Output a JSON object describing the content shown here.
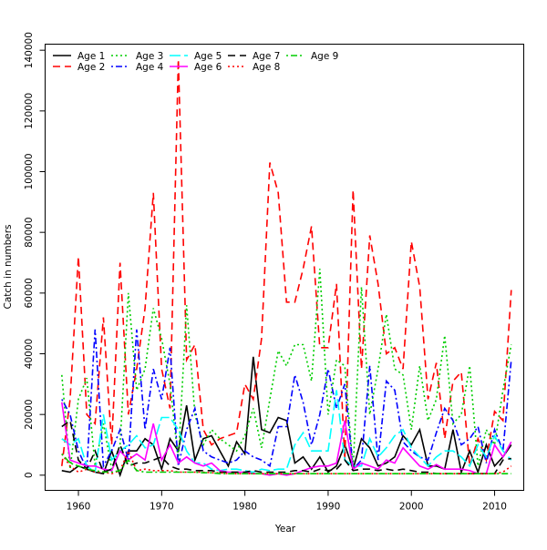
{
  "chart_data": {
    "type": "line",
    "title": "",
    "xlabel": "Year",
    "ylabel": "Catch in numbers",
    "xlim": [
      1956,
      2013.5
    ],
    "ylim": [
      -5000,
      142000
    ],
    "x_ticks": [
      1960,
      1970,
      1980,
      1990,
      2000,
      2010
    ],
    "y_ticks": [
      0,
      20000,
      40000,
      60000,
      80000,
      100000,
      120000,
      140000
    ],
    "grid": false,
    "legend_position": "top-left",
    "x": [
      1958,
      1959,
      1960,
      1961,
      1962,
      1963,
      1964,
      1965,
      1966,
      1967,
      1968,
      1969,
      1970,
      1971,
      1972,
      1973,
      1974,
      1975,
      1976,
      1977,
      1978,
      1979,
      1980,
      1981,
      1982,
      1983,
      1984,
      1985,
      1986,
      1987,
      1988,
      1989,
      1990,
      1991,
      1992,
      1993,
      1994,
      1995,
      1996,
      1997,
      1998,
      1999,
      2000,
      2001,
      2002,
      2003,
      2004,
      2005,
      2006,
      2007,
      2008,
      2009,
      2010,
      2011,
      2012
    ],
    "series": [
      {
        "name": "Age 1",
        "color": "#000000",
        "dash": "",
        "values": [
          1500,
          1000,
          3000,
          2000,
          1000,
          500,
          8000,
          0,
          8000,
          8000,
          12000,
          10000,
          2000,
          12000,
          8000,
          23000,
          5000,
          12000,
          13000,
          8000,
          3000,
          11000,
          7000,
          39000,
          15000,
          14000,
          19000,
          18000,
          4000,
          6000,
          2000,
          6000,
          1000,
          3000,
          10000,
          2000,
          12000,
          9000,
          3000,
          4000,
          6000,
          13000,
          10000,
          15000,
          3000,
          3000,
          2000,
          15000,
          1000,
          8000,
          1000,
          10000,
          3000,
          6000,
          10000
        ]
      },
      {
        "name": "Age 2",
        "color": "#ff0000",
        "dash": "8,5",
        "values": [
          3000,
          25000,
          72000,
          20000,
          17000,
          52000,
          10000,
          70000,
          20000,
          35000,
          55000,
          93000,
          35000,
          22000,
          137000,
          38000,
          43000,
          15000,
          10000,
          12000,
          13000,
          14000,
          30000,
          25000,
          45000,
          103000,
          93000,
          57000,
          57000,
          68000,
          82000,
          42000,
          42000,
          63000,
          5000,
          94000,
          35000,
          79000,
          63000,
          40000,
          42000,
          35000,
          77000,
          62000,
          25000,
          37000,
          12000,
          31000,
          34000,
          3000,
          12000,
          5000,
          21000,
          18000,
          61000
        ]
      },
      {
        "name": "Age 3",
        "color": "#00cd00",
        "dash": "2,3",
        "values": [
          33000,
          2000,
          25000,
          32000,
          3000,
          17000,
          2000,
          10000,
          60000,
          28000,
          35000,
          55000,
          45000,
          30000,
          5000,
          56000,
          20000,
          10000,
          15000,
          12000,
          10000,
          8000,
          13000,
          22000,
          9000,
          25000,
          41000,
          36000,
          43000,
          43000,
          31000,
          68000,
          20000,
          38000,
          36000,
          2000,
          62000,
          20000,
          35000,
          53000,
          35000,
          33000,
          15000,
          36000,
          18000,
          25000,
          46000,
          17000,
          20000,
          36000,
          3000,
          15000,
          10000,
          28000,
          43000
        ]
      },
      {
        "name": "Age 4",
        "color": "#0000ff",
        "dash": "2,3,7,3",
        "values": [
          25000,
          20000,
          8000,
          2000,
          48000,
          3000,
          8000,
          15000,
          5000,
          48000,
          15000,
          35000,
          25000,
          42000,
          3000,
          15000,
          22000,
          8000,
          6000,
          5000,
          4000,
          5000,
          8000,
          6000,
          5000,
          3000,
          16000,
          16000,
          33000,
          24000,
          10000,
          20000,
          35000,
          22000,
          30000,
          2000,
          5000,
          36000,
          5000,
          31000,
          28000,
          11000,
          8000,
          6000,
          5000,
          14000,
          22000,
          18000,
          10000,
          12000,
          16000,
          4000,
          15000,
          8000,
          38000
        ]
      },
      {
        "name": "Age 5",
        "color": "#00ffff",
        "dash": "12,4",
        "values": [
          12000,
          10000,
          12000,
          3000,
          1000,
          20000,
          5000,
          8000,
          10000,
          13000,
          9000,
          10000,
          19000,
          19000,
          15000,
          8000,
          4000,
          4000,
          2000,
          1500,
          2000,
          2000,
          1500,
          1000,
          2000,
          1500,
          2000,
          2000,
          10000,
          14000,
          8000,
          8000,
          8000,
          28000,
          5000,
          3000,
          3000,
          12000,
          6000,
          9000,
          13000,
          15000,
          9000,
          6000,
          3000,
          6000,
          8000,
          8000,
          6000,
          3000,
          10000,
          6000,
          13000,
          8000,
          5000
        ]
      },
      {
        "name": "Age 6",
        "color": "#ff00ff",
        "dash": "",
        "values": [
          24000,
          5000,
          4000,
          3000,
          3000,
          2000,
          1500,
          8000,
          5000,
          7000,
          5000,
          17000,
          5000,
          10000,
          4000,
          6000,
          4000,
          3000,
          4000,
          1500,
          1000,
          1000,
          1000,
          500,
          500,
          0,
          500,
          0,
          500,
          1500,
          2500,
          3000,
          3000,
          4000,
          18000,
          2000,
          4000,
          3000,
          2000,
          5000,
          4000,
          9000,
          6000,
          3000,
          2000,
          3500,
          2000,
          2000,
          2000,
          1500,
          500,
          500,
          10000,
          6000,
          11000
        ]
      },
      {
        "name": "Age 7",
        "color": "#000000",
        "dash": "8,5",
        "values": [
          16000,
          18000,
          5000,
          2000,
          8000,
          1000,
          2000,
          10000,
          3000,
          4000,
          4000,
          5000,
          6000,
          3000,
          2000,
          2000,
          1500,
          1500,
          1500,
          1000,
          1000,
          1000,
          1000,
          1500,
          1000,
          1000,
          1000,
          1000,
          1500,
          1500,
          1000,
          2000,
          1500,
          2000,
          5000,
          1500,
          2000,
          2000,
          1500,
          2000,
          1500,
          2000,
          1500,
          1000,
          1000,
          500,
          500,
          500,
          500,
          500,
          500,
          500,
          500,
          5000,
          5500
        ]
      },
      {
        "name": "Age 8",
        "color": "#ff0000",
        "dash": "2,3",
        "values": [
          7000,
          3000,
          1000,
          2000,
          1000,
          1000,
          500,
          1500,
          8000,
          1500,
          2000,
          1500,
          1500,
          1500,
          1000,
          1000,
          1000,
          1000,
          800,
          800,
          500,
          500,
          500,
          500,
          500,
          500,
          500,
          500,
          500,
          500,
          500,
          500,
          500,
          500,
          500,
          500,
          500,
          500,
          500,
          500,
          500,
          500,
          500,
          500,
          500,
          500,
          500,
          500,
          500,
          500,
          500,
          500,
          500,
          1000,
          3000
        ]
      },
      {
        "name": "Age 9",
        "color": "#00cd00",
        "dash": "2,3,7,3",
        "values": [
          7000,
          4000,
          3000,
          2000,
          1500,
          1000,
          1000,
          1500,
          5000,
          1500,
          1000,
          1000,
          1000,
          1000,
          1000,
          1000,
          1000,
          800,
          800,
          500,
          500,
          500,
          500,
          500,
          500,
          500,
          500,
          500,
          500,
          500,
          500,
          500,
          500,
          500,
          500,
          500,
          500,
          500,
          500,
          500,
          500,
          500,
          500,
          500,
          500,
          500,
          500,
          500,
          500,
          500,
          500,
          500,
          500,
          500,
          500
        ]
      }
    ]
  }
}
